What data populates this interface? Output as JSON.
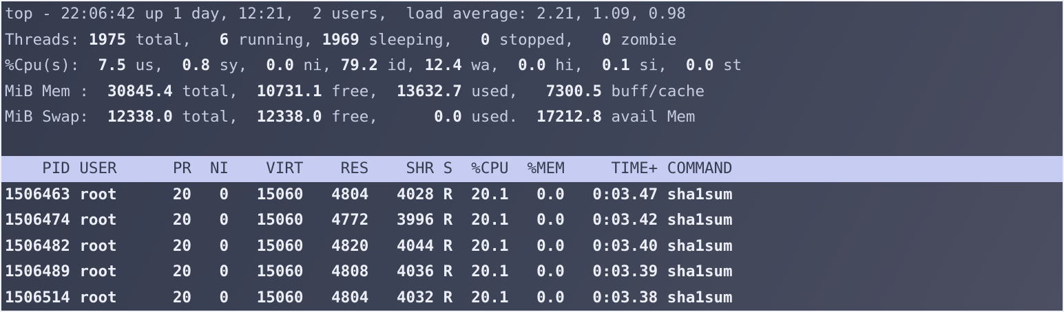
{
  "window": {
    "title": "top"
  },
  "colors": {
    "background_top": "#363c4e",
    "background_mid": "#3e4457",
    "background_bottom": "#4c4e61",
    "text": "#c7cce2",
    "bold_text": "#edeff8",
    "header_bg": "#c7cdf2",
    "header_fg": "#363c50",
    "frame": "#eef0f5"
  },
  "summary_lines": [
    {
      "name": "uptime",
      "segments": [
        {
          "t": "top - 22:06:42 up 1 day, 12:21,  2 users,  load average: 2.21, 1.09, 0.98",
          "b": false
        }
      ]
    },
    {
      "name": "threads",
      "segments": [
        {
          "t": "Threads: ",
          "b": false
        },
        {
          "t": "1975",
          "b": true
        },
        {
          "t": " total,   ",
          "b": false
        },
        {
          "t": "6",
          "b": true
        },
        {
          "t": " running, ",
          "b": false
        },
        {
          "t": "1969",
          "b": true
        },
        {
          "t": " sleeping,   ",
          "b": false
        },
        {
          "t": "0",
          "b": true
        },
        {
          "t": " stopped,   ",
          "b": false
        },
        {
          "t": "0",
          "b": true
        },
        {
          "t": " zombie",
          "b": false
        }
      ]
    },
    {
      "name": "cpu",
      "segments": [
        {
          "t": "%Cpu(s):  ",
          "b": false
        },
        {
          "t": "7.5",
          "b": true
        },
        {
          "t": " us,  ",
          "b": false
        },
        {
          "t": "0.8",
          "b": true
        },
        {
          "t": " sy,  ",
          "b": false
        },
        {
          "t": "0.0",
          "b": true
        },
        {
          "t": " ni, ",
          "b": false
        },
        {
          "t": "79.2",
          "b": true
        },
        {
          "t": " id, ",
          "b": false
        },
        {
          "t": "12.4",
          "b": true
        },
        {
          "t": " wa,  ",
          "b": false
        },
        {
          "t": "0.0",
          "b": true
        },
        {
          "t": " hi,  ",
          "b": false
        },
        {
          "t": "0.1",
          "b": true
        },
        {
          "t": " si,  ",
          "b": false
        },
        {
          "t": "0.0",
          "b": true
        },
        {
          "t": " st",
          "b": false
        }
      ]
    },
    {
      "name": "memory",
      "segments": [
        {
          "t": "MiB Mem :  ",
          "b": false
        },
        {
          "t": "30845.4",
          "b": true
        },
        {
          "t": " total,  ",
          "b": false
        },
        {
          "t": "10731.1",
          "b": true
        },
        {
          "t": " free,  ",
          "b": false
        },
        {
          "t": "13632.7",
          "b": true
        },
        {
          "t": " used,   ",
          "b": false
        },
        {
          "t": "7300.5",
          "b": true
        },
        {
          "t": " buff/cache",
          "b": false
        }
      ]
    },
    {
      "name": "swap",
      "segments": [
        {
          "t": "MiB Swap:  ",
          "b": false
        },
        {
          "t": "12338.0",
          "b": true
        },
        {
          "t": " total,  ",
          "b": false
        },
        {
          "t": "12338.0",
          "b": true
        },
        {
          "t": " free,      ",
          "b": false
        },
        {
          "t": "0.0",
          "b": true
        },
        {
          "t": " used.  ",
          "b": false
        },
        {
          "t": "17212.8",
          "b": true
        },
        {
          "t": " avail Mem",
          "b": false
        }
      ]
    }
  ],
  "table": {
    "columns": [
      "PID",
      "USER",
      "PR",
      "NI",
      "VIRT",
      "RES",
      "SHR",
      "S",
      "%CPU",
      "%MEM",
      "TIME+",
      "COMMAND"
    ],
    "header_text": "    PID USER      PR  NI    VIRT    RES    SHR S  %CPU  %MEM     TIME+ COMMAND",
    "rows": [
      {
        "pid": "1506463",
        "user": "root",
        "pr": "20",
        "ni": "0",
        "virt": "15060",
        "res": "4804",
        "shr": "4028",
        "s": "R",
        "cpu": "20.1",
        "mem": "0.0",
        "time": "0:03.47",
        "command": "sha1sum",
        "text": "1506463 root      20   0   15060   4804   4028 R  20.1   0.0   0:03.47 sha1sum"
      },
      {
        "pid": "1506474",
        "user": "root",
        "pr": "20",
        "ni": "0",
        "virt": "15060",
        "res": "4772",
        "shr": "3996",
        "s": "R",
        "cpu": "20.1",
        "mem": "0.0",
        "time": "0:03.42",
        "command": "sha1sum",
        "text": "1506474 root      20   0   15060   4772   3996 R  20.1   0.0   0:03.42 sha1sum"
      },
      {
        "pid": "1506482",
        "user": "root",
        "pr": "20",
        "ni": "0",
        "virt": "15060",
        "res": "4820",
        "shr": "4044",
        "s": "R",
        "cpu": "20.1",
        "mem": "0.0",
        "time": "0:03.40",
        "command": "sha1sum",
        "text": "1506482 root      20   0   15060   4820   4044 R  20.1   0.0   0:03.40 sha1sum"
      },
      {
        "pid": "1506489",
        "user": "root",
        "pr": "20",
        "ni": "0",
        "virt": "15060",
        "res": "4808",
        "shr": "4036",
        "s": "R",
        "cpu": "20.1",
        "mem": "0.0",
        "time": "0:03.39",
        "command": "sha1sum",
        "text": "1506489 root      20   0   15060   4808   4036 R  20.1   0.0   0:03.39 sha1sum"
      },
      {
        "pid": "1506514",
        "user": "root",
        "pr": "20",
        "ni": "0",
        "virt": "15060",
        "res": "4804",
        "shr": "4032",
        "s": "R",
        "cpu": "20.1",
        "mem": "0.0",
        "time": "0:03.38",
        "command": "sha1sum",
        "text": "1506514 root      20   0   15060   4804   4032 R  20.1   0.0   0:03.38 sha1sum"
      }
    ]
  }
}
